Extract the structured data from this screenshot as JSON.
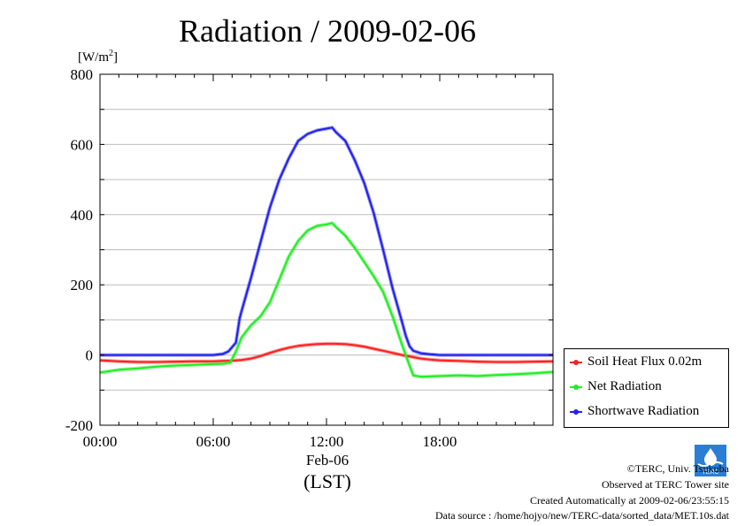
{
  "title": "Radiation / 2009-02-06",
  "unit": "[W/m²]",
  "legend": [
    {
      "label": "Soil Heat Flux 0.02m",
      "color": "#ff2020"
    },
    {
      "label": "Net Radiation",
      "color": "#22ee22"
    },
    {
      "label": "Shortwave Radiation",
      "color": "#2020ee"
    }
  ],
  "x_date_label": "Feb-06",
  "x_axis_label": "(LST)",
  "footer": {
    "copyright": "©TERC, Univ. Tsukuba",
    "site": "Observed at TERC Tower site",
    "created": "Created Automatically at 2009-02-06/23:55:15",
    "source": "Data source : /home/hojyo/new/TERC-data/sorted_data/MET.10s.dat"
  },
  "logo_text": "TERC",
  "chart_data": {
    "type": "line",
    "title": "Radiation / 2009-02-06",
    "ylabel": "[W/m²]",
    "xlabel": "(LST)",
    "xlim": [
      0,
      24
    ],
    "ylim": [
      -200,
      800
    ],
    "x_ticks": [
      {
        "value": 0,
        "label": "00:00"
      },
      {
        "value": 6,
        "label": "06:00"
      },
      {
        "value": 12,
        "label": "12:00"
      },
      {
        "value": 18,
        "label": "18:00"
      }
    ],
    "y_ticks": [
      {
        "value": -200,
        "label": "-200"
      },
      {
        "value": 0,
        "label": "0"
      },
      {
        "value": 200,
        "label": "200"
      },
      {
        "value": 400,
        "label": "400"
      },
      {
        "value": 600,
        "label": "600"
      },
      {
        "value": 800,
        "label": "800"
      }
    ],
    "grid": true,
    "legend_position": "right",
    "series": [
      {
        "name": "Soil Heat Flux 0.02m",
        "color": "#ff2020",
        "x": [
          0,
          1,
          2,
          3,
          4,
          5,
          6,
          6.5,
          7,
          7.5,
          8,
          8.5,
          9,
          9.5,
          10,
          10.5,
          11,
          11.5,
          12,
          12.5,
          13,
          13.5,
          14,
          14.5,
          15,
          15.5,
          16,
          16.5,
          17,
          17.5,
          18,
          19,
          20,
          21,
          22,
          23,
          24
        ],
        "y": [
          -15,
          -18,
          -20,
          -20,
          -19,
          -18,
          -18,
          -17,
          -16,
          -14,
          -10,
          -3,
          6,
          14,
          21,
          26,
          29,
          31,
          32,
          32,
          31,
          28,
          24,
          18,
          12,
          6,
          0,
          -5,
          -10,
          -13,
          -15,
          -17,
          -19,
          -20,
          -20,
          -19,
          -18
        ]
      },
      {
        "name": "Net Radiation",
        "color": "#22ee22",
        "x": [
          0,
          1,
          2,
          3,
          4,
          5,
          6,
          6.5,
          6.9,
          7.2,
          7.5,
          8,
          8.5,
          9,
          9.5,
          10,
          10.5,
          11,
          11.5,
          12,
          12.3,
          12.5,
          13,
          13.5,
          14,
          14.5,
          15,
          15.5,
          16,
          16.3,
          16.6,
          17,
          18,
          19,
          20,
          21,
          22,
          23,
          24
        ],
        "y": [
          -50,
          -42,
          -38,
          -33,
          -30,
          -28,
          -26,
          -25,
          -22,
          10,
          50,
          85,
          110,
          150,
          215,
          280,
          325,
          355,
          368,
          372,
          376,
          365,
          340,
          305,
          265,
          225,
          180,
          110,
          30,
          -15,
          -58,
          -62,
          -60,
          -58,
          -60,
          -57,
          -55,
          -52,
          -48
        ]
      },
      {
        "name": "Shortwave Radiation",
        "color": "#2020ee",
        "x": [
          0,
          1,
          2,
          3,
          4,
          5,
          6,
          6.5,
          6.8,
          7.2,
          7.4,
          7.5,
          8,
          8.5,
          9,
          9.5,
          10,
          10.5,
          11,
          11.5,
          12,
          12.3,
          12.5,
          13,
          13.5,
          14,
          14.5,
          15,
          15.5,
          16,
          16.2,
          16.4,
          16.6,
          17,
          17.5,
          18,
          19,
          20,
          21,
          22,
          23,
          24
        ],
        "y": [
          0,
          0,
          0,
          0,
          0,
          0,
          0,
          3,
          10,
          35,
          105,
          125,
          220,
          320,
          420,
          500,
          560,
          610,
          630,
          640,
          645,
          648,
          635,
          610,
          555,
          490,
          405,
          300,
          190,
          95,
          55,
          25,
          12,
          5,
          2,
          0,
          0,
          0,
          0,
          0,
          0,
          0
        ]
      }
    ]
  }
}
